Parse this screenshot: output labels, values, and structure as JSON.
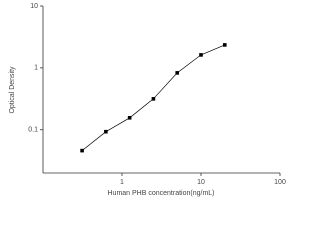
{
  "chart_data": {
    "type": "scatter",
    "x_label": "Human PHB concentration(ng/mL)",
    "y_label": "Optical Density",
    "x_log": true,
    "y_log": true,
    "xlim": [
      0.1,
      100
    ],
    "ylim": [
      0.02,
      10
    ],
    "xticks": [
      1,
      10,
      100
    ],
    "yticks": [
      0.1,
      1,
      10
    ],
    "series": [
      {
        "color": "#000000",
        "x": [
          0.3125,
          0.625,
          1.25,
          2.5,
          5,
          10,
          20
        ],
        "values": [
          0.046,
          0.093,
          0.156,
          0.316,
          0.83,
          1.62,
          2.35
        ]
      }
    ]
  }
}
